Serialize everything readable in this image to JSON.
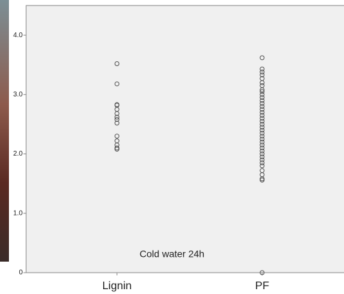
{
  "chart_data": {
    "type": "strip",
    "categories": [
      "Lignin",
      "PF"
    ],
    "values": [
      [
        3.52,
        3.18,
        2.83,
        2.82,
        2.75,
        2.68,
        2.62,
        2.58,
        2.52,
        2.3,
        2.22,
        2.15,
        2.1,
        2.08
      ],
      [
        3.62,
        3.43,
        3.38,
        3.33,
        3.27,
        3.2,
        3.15,
        3.08,
        3.05,
        3.0,
        2.95,
        2.9,
        2.85,
        2.8,
        2.75,
        2.7,
        2.65,
        2.6,
        2.55,
        2.5,
        2.45,
        2.4,
        2.35,
        2.3,
        2.25,
        2.2,
        2.15,
        2.1,
        2.05,
        2.0,
        1.95,
        1.9,
        1.85,
        1.8,
        1.72,
        1.65,
        1.58,
        1.56,
        0
      ]
    ],
    "color": "#555555",
    "annotation": "Cold water 24h",
    "ylim": [
      0,
      4.5
    ],
    "yticks": [
      0,
      {
        "value": 1,
        "label": "1.0"
      },
      {
        "value": 2,
        "label": "2.0"
      },
      {
        "value": 3,
        "label": "3.0"
      },
      {
        "value": 4,
        "label": "4.0"
      }
    ]
  }
}
